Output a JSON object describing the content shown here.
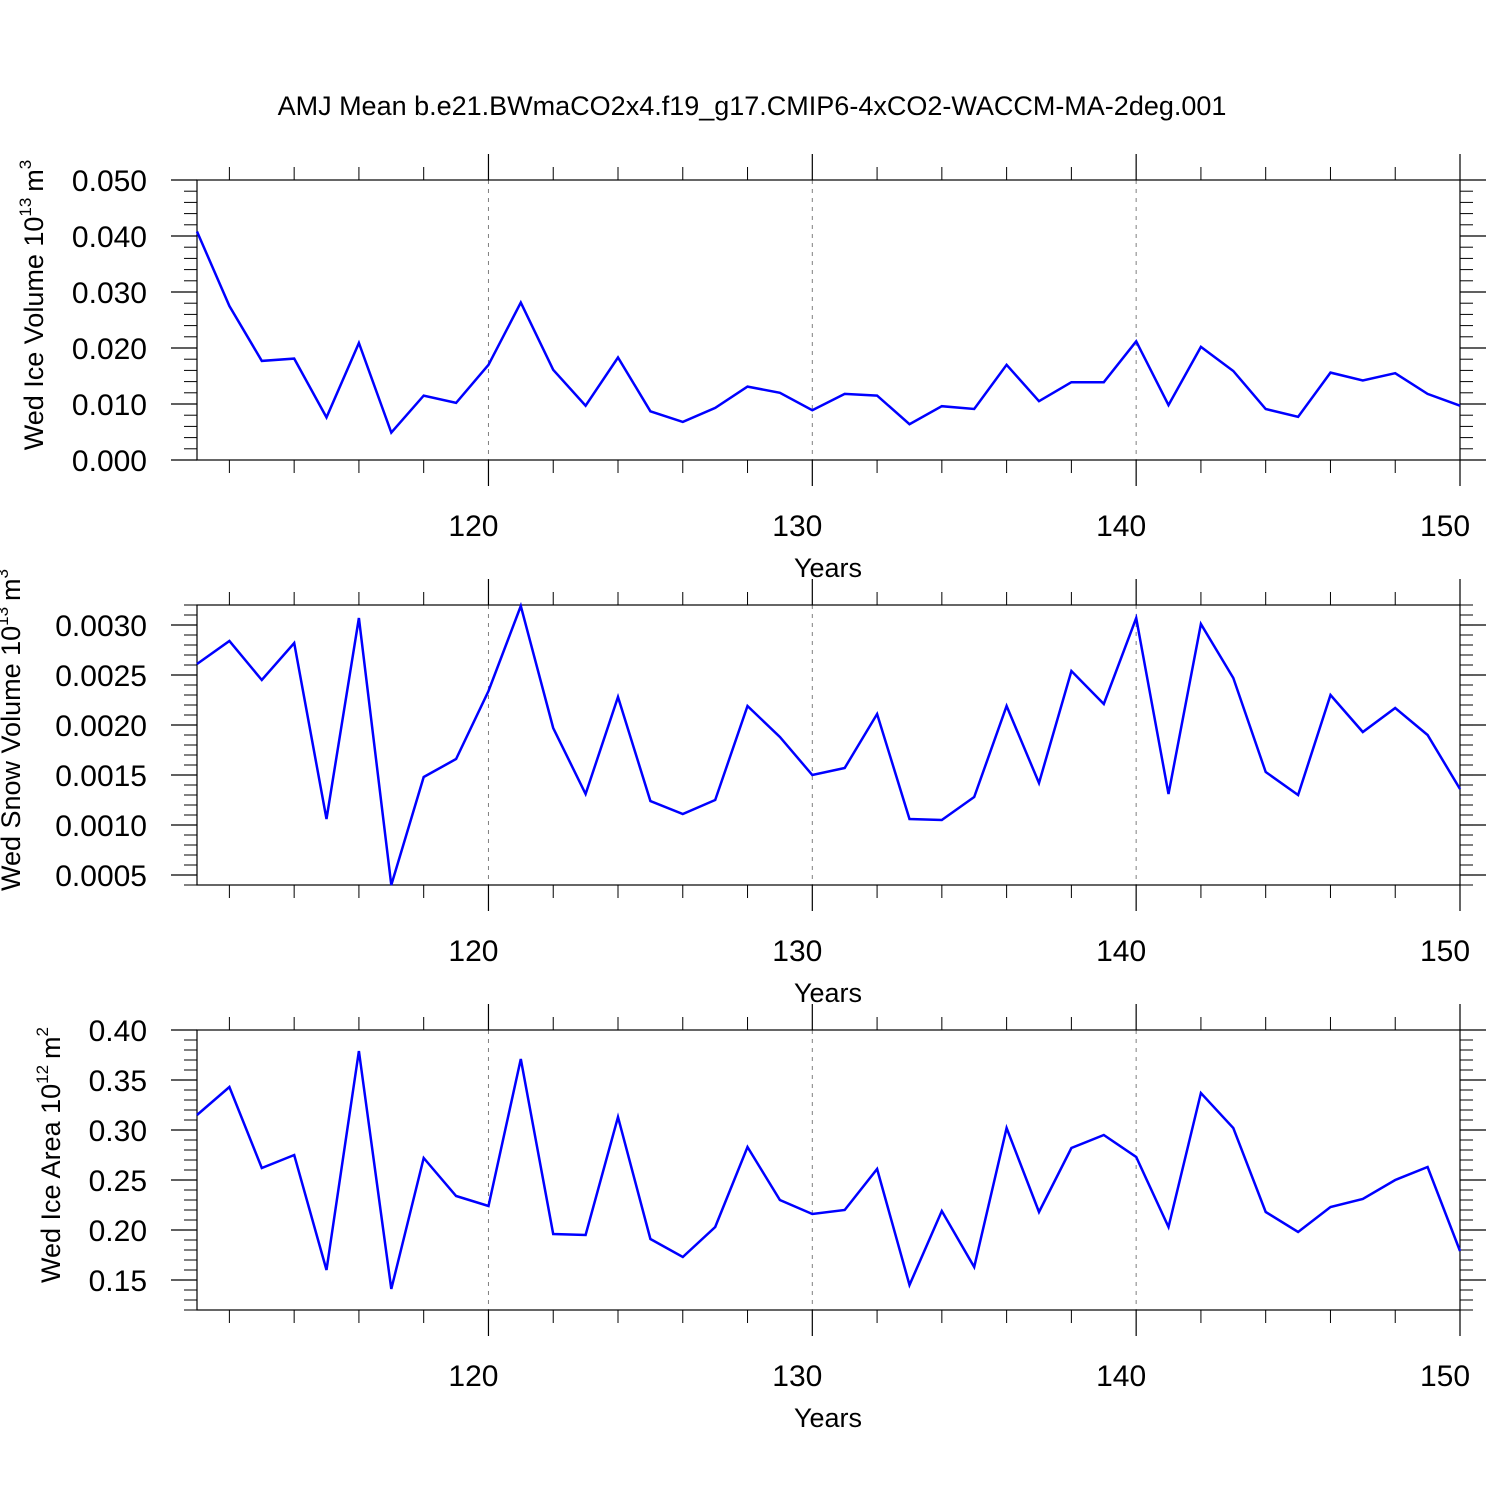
{
  "title": "AMJ Mean b.e21.BWmaCO2x4.f19_g17.CMIP6-4xCO2-WACCM-MA-2deg.001",
  "colors": {
    "line": "#0000ff",
    "axis": "#000000",
    "grid": "#808080"
  },
  "chart_data": [
    {
      "type": "line",
      "xlabel": "Years",
      "ylabel": {
        "text": "Wed Ice Volume 10",
        "exp": "13",
        "unit": "m",
        "unit_exp": "3"
      },
      "xlim": [
        111,
        150
      ],
      "ylim": [
        0,
        0.05
      ],
      "x_ticks": [
        120,
        130,
        140,
        150
      ],
      "x_tick_labels": [
        "120",
        "130",
        "140",
        "150"
      ],
      "y_ticks": [
        0,
        0.01,
        0.02,
        0.03,
        0.04,
        0.05
      ],
      "y_tick_labels": [
        "0.000",
        "0.010",
        "0.020",
        "0.030",
        "0.040",
        "0.050"
      ],
      "y_minor_step": 0.002,
      "grid": "dashed vertical at major x ticks",
      "x": [
        111,
        112,
        113,
        114,
        115,
        116,
        117,
        118,
        119,
        120,
        121,
        122,
        123,
        124,
        125,
        126,
        127,
        128,
        129,
        130,
        131,
        132,
        133,
        134,
        135,
        136,
        137,
        138,
        139,
        140,
        141,
        142,
        143,
        144,
        145,
        146,
        147,
        148,
        149,
        150
      ],
      "values": [
        0.0408,
        0.0275,
        0.0177,
        0.0181,
        0.0076,
        0.0209,
        0.0049,
        0.0115,
        0.0102,
        0.017,
        0.0281,
        0.0161,
        0.0097,
        0.0183,
        0.0087,
        0.0068,
        0.0093,
        0.0131,
        0.012,
        0.0089,
        0.0118,
        0.0115,
        0.0064,
        0.0096,
        0.0091,
        0.017,
        0.0105,
        0.0139,
        0.0139,
        0.0212,
        0.0098,
        0.0202,
        0.0159,
        0.0091,
        0.0077,
        0.0156,
        0.0142,
        0.0155,
        0.0118,
        0.0097
      ]
    },
    {
      "type": "line",
      "xlabel": "Years",
      "ylabel": {
        "text": "Wed Snow Volume 10",
        "exp": "13",
        "unit": "m",
        "unit_exp": "3"
      },
      "xlim": [
        111,
        150
      ],
      "ylim": [
        0.0004,
        0.0032
      ],
      "x_ticks": [
        120,
        130,
        140,
        150
      ],
      "x_tick_labels": [
        "120",
        "130",
        "140",
        "150"
      ],
      "y_ticks": [
        0.0005,
        0.001,
        0.0015,
        0.002,
        0.0025,
        0.003
      ],
      "y_tick_labels": [
        "0.0005",
        "0.0010",
        "0.0015",
        "0.0020",
        "0.0025",
        "0.0030"
      ],
      "y_minor_step": 0.0001,
      "grid": "dashed vertical at major x ticks",
      "x": [
        111,
        112,
        113,
        114,
        115,
        116,
        117,
        118,
        119,
        120,
        121,
        122,
        123,
        124,
        125,
        126,
        127,
        128,
        129,
        130,
        131,
        132,
        133,
        134,
        135,
        136,
        137,
        138,
        139,
        140,
        141,
        142,
        143,
        144,
        145,
        146,
        147,
        148,
        149,
        150
      ],
      "values": [
        0.00261,
        0.00284,
        0.00245,
        0.00282,
        0.00106,
        0.00307,
        0.0004,
        0.00148,
        0.00166,
        0.00234,
        0.00319,
        0.00197,
        0.00131,
        0.00228,
        0.00124,
        0.00111,
        0.00125,
        0.00219,
        0.00188,
        0.0015,
        0.00157,
        0.00211,
        0.00106,
        0.00105,
        0.00128,
        0.00219,
        0.00142,
        0.00254,
        0.00221,
        0.00307,
        0.00131,
        0.00301,
        0.00247,
        0.00153,
        0.0013,
        0.0023,
        0.00193,
        0.00217,
        0.0019,
        0.00136
      ]
    },
    {
      "type": "line",
      "xlabel": "Years",
      "ylabel": {
        "text": "Wed Ice Area 10",
        "exp": "12",
        "unit": "m",
        "unit_exp": "2"
      },
      "xlim": [
        111,
        150
      ],
      "ylim": [
        0.12,
        0.4
      ],
      "x_ticks": [
        120,
        130,
        140,
        150
      ],
      "x_tick_labels": [
        "120",
        "130",
        "140",
        "150"
      ],
      "y_ticks": [
        0.15,
        0.2,
        0.25,
        0.3,
        0.35,
        0.4
      ],
      "y_tick_labels": [
        "0.15",
        "0.20",
        "0.25",
        "0.30",
        "0.35",
        "0.40"
      ],
      "y_minor_step": 0.01,
      "grid": "dashed vertical at major x ticks",
      "x": [
        111,
        112,
        113,
        114,
        115,
        116,
        117,
        118,
        119,
        120,
        121,
        122,
        123,
        124,
        125,
        126,
        127,
        128,
        129,
        130,
        131,
        132,
        133,
        134,
        135,
        136,
        137,
        138,
        139,
        140,
        141,
        142,
        143,
        144,
        145,
        146,
        147,
        148,
        149,
        150
      ],
      "values": [
        0.315,
        0.343,
        0.262,
        0.275,
        0.16,
        0.379,
        0.141,
        0.272,
        0.234,
        0.224,
        0.371,
        0.196,
        0.195,
        0.313,
        0.191,
        0.173,
        0.203,
        0.283,
        0.23,
        0.216,
        0.22,
        0.261,
        0.145,
        0.219,
        0.163,
        0.302,
        0.218,
        0.282,
        0.295,
        0.273,
        0.203,
        0.337,
        0.302,
        0.218,
        0.198,
        0.223,
        0.231,
        0.25,
        0.263,
        0.179
      ]
    }
  ]
}
